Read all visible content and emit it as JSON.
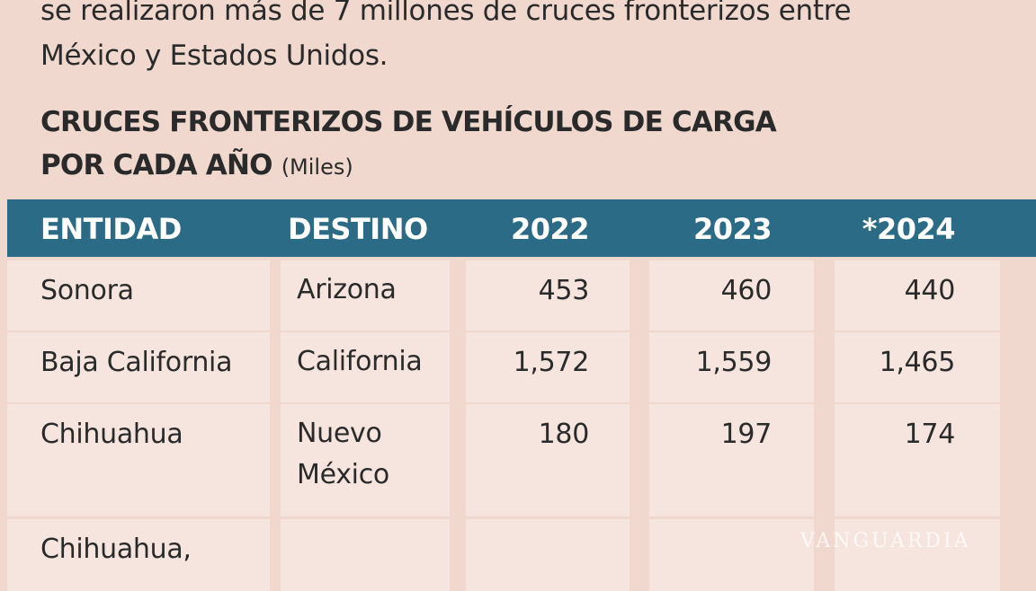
{
  "intro": [
    "se realizaron más de 7 millones de cruces fronterizos entre",
    "México y Estados Unidos."
  ],
  "title": [
    "CRUCES FRONTERIZOS DE VEHÍCULOS DE CARGA",
    "POR CADA AÑO"
  ],
  "unit": "(Miles)",
  "table": {
    "header": [
      "ENTIDAD",
      "DESTINO",
      "2022",
      "2023",
      "*2024"
    ],
    "rows": [
      [
        "Sonora",
        "Arizona",
        "453",
        "460",
        "440"
      ],
      [
        "Baja California",
        "California",
        "1,572",
        "1,559",
        "1,465"
      ],
      [
        "Chihuahua",
        "Nuevo México",
        "180",
        "197",
        "174"
      ],
      [
        "Chihuahua,",
        null,
        null,
        null,
        null
      ]
    ]
  },
  "watermark": "VANGUARDIA"
}
